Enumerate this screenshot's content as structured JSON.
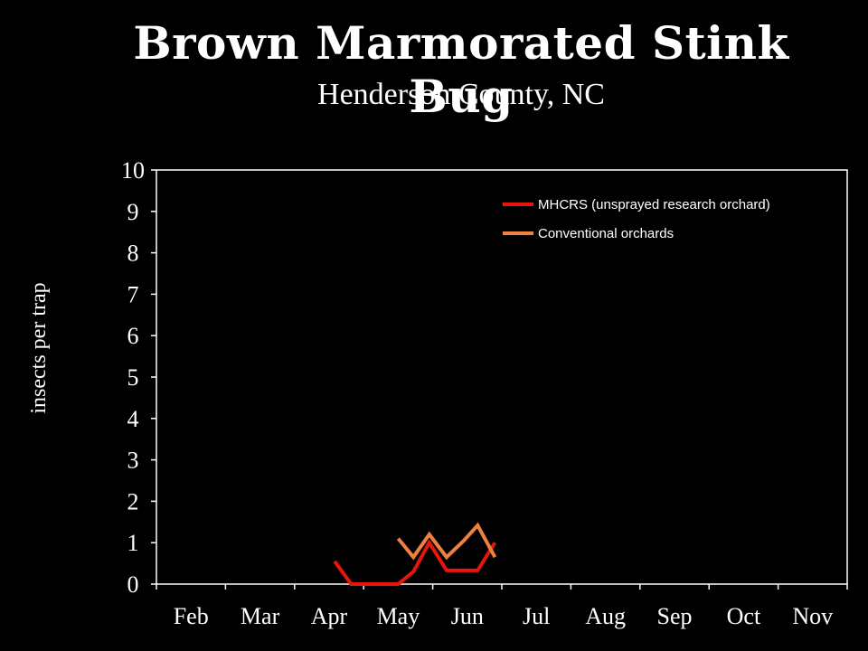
{
  "chart_data": {
    "type": "line",
    "title": "Brown Marmorated Stink Bug",
    "subtitle": "Henderson County, NC",
    "xlabel": "",
    "ylabel": "insects per trap",
    "x_ticks": [
      "Feb",
      "Mar",
      "Apr",
      "May",
      "Jun",
      "Jul",
      "Aug",
      "Sep",
      "Oct",
      "Nov"
    ],
    "y_ticks": [
      "0",
      "1",
      "2",
      "3",
      "4",
      "5",
      "6",
      "7",
      "8",
      "9",
      "10"
    ],
    "ylim": [
      0,
      10
    ],
    "grid": false,
    "legend_position": "top-right",
    "series": [
      {
        "name": "MHCRS (unsprayed research orchard)",
        "color": "#e8150b",
        "points": [
          {
            "x": 2.08,
            "y": 0.55
          },
          {
            "x": 2.32,
            "y": 0.0
          },
          {
            "x": 2.55,
            "y": 0.0
          },
          {
            "x": 3.0,
            "y": 0.0
          },
          {
            "x": 3.22,
            "y": 0.3
          },
          {
            "x": 3.45,
            "y": 1.0
          },
          {
            "x": 3.7,
            "y": 0.33
          },
          {
            "x": 4.15,
            "y": 0.33
          },
          {
            "x": 4.4,
            "y": 1.0
          }
        ]
      },
      {
        "name": "Conventional orchards",
        "color": "#f08040",
        "points": [
          {
            "x": 3.0,
            "y": 1.1
          },
          {
            "x": 3.22,
            "y": 0.65
          },
          {
            "x": 3.45,
            "y": 1.2
          },
          {
            "x": 3.7,
            "y": 0.65
          },
          {
            "x": 3.95,
            "y": 1.05
          },
          {
            "x": 4.15,
            "y": 1.42
          },
          {
            "x": 4.4,
            "y": 0.65
          }
        ]
      }
    ]
  }
}
